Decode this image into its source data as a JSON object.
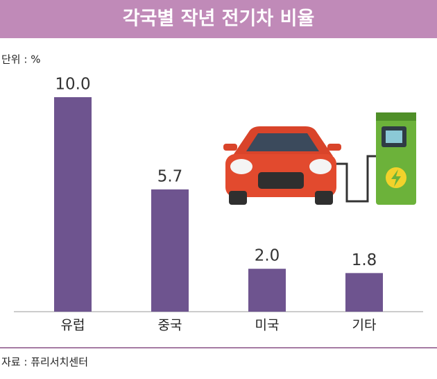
{
  "chart_data": {
    "type": "bar",
    "title": "각국별 작년 전기차 비율",
    "unit_label": "단위 : %",
    "categories": [
      "유럽",
      "중국",
      "미국",
      "기타"
    ],
    "values": [
      10.0,
      5.7,
      2.0,
      1.8
    ],
    "value_labels": [
      "10.0",
      "5.7",
      "2.0",
      "1.8"
    ],
    "color": "#6e548f",
    "source": "자료 : 퓨리서치센터"
  }
}
